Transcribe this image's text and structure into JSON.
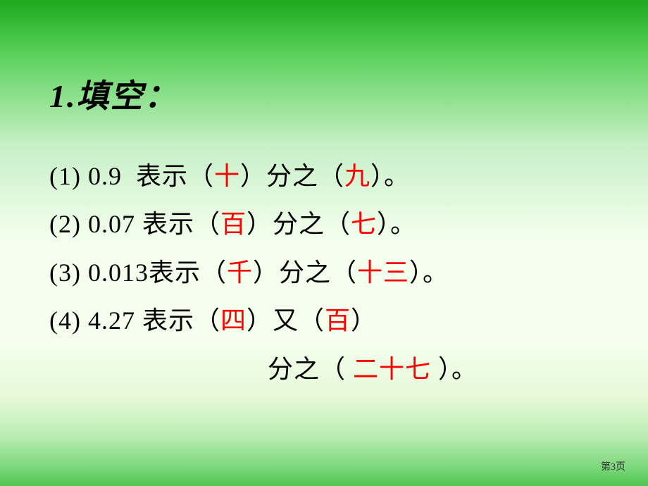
{
  "slide": {
    "title": "1.填空：",
    "items": [
      {
        "prefix": "(1) 0.9  表示（",
        "blank1": "十",
        "mid1": "）分之（",
        "blank2": "九",
        "suffix": "）。"
      },
      {
        "prefix": "(2) 0.07 表示（",
        "blank1": "百",
        "mid1": "）分之（",
        "blank2": "七",
        "suffix": "）。"
      },
      {
        "prefix": "(3) 0.013表示（",
        "blank1": "千",
        "mid1": "）分之（",
        "blank2": "十三",
        "suffix": "）。"
      },
      {
        "prefix": "(4) 4.27 表示（",
        "blank1": "四",
        "mid1": "）又（",
        "blank2": "百",
        "suffix": "）"
      }
    ],
    "continuation": {
      "prefix": "分之（ ",
      "blank": "二十七",
      "suffix": " ）。"
    },
    "page_label": "第3页"
  },
  "style": {
    "background_gradient": [
      "#1fa81f",
      "#3cbf3c",
      "#5fd35f",
      "#c8f0c8",
      "#f5ffee",
      "#e5f9d8",
      "#b8ecb0",
      "#7dd87d",
      "#4fc54f"
    ],
    "title_color": "#000000",
    "title_fontsize": 46,
    "body_color": "#000000",
    "body_fontsize": 36,
    "answer_color": "#ff0000",
    "font_family": "SimSun"
  }
}
